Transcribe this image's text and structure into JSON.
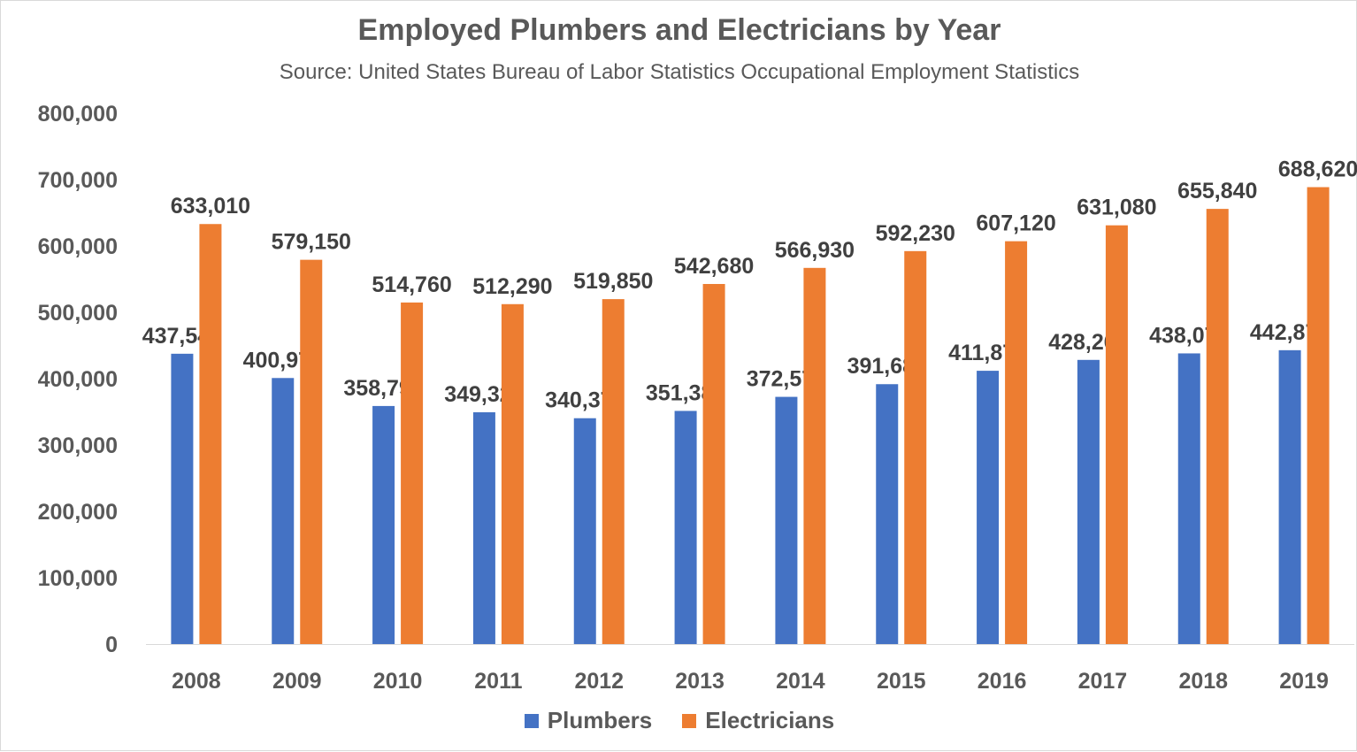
{
  "chart_data": {
    "type": "bar",
    "title": "Employed Plumbers and Electricians by Year",
    "subtitle": "Source: United States Bureau of Labor Statistics Occupational Employment Statistics",
    "xlabel": "",
    "ylabel": "",
    "ylim": [
      0,
      800000
    ],
    "yticks": [
      "0",
      "100,000",
      "200,000",
      "300,000",
      "400,000",
      "500,000",
      "600,000",
      "700,000",
      "800,000"
    ],
    "grid": false,
    "legend_position": "bottom",
    "categories": [
      "2008",
      "2009",
      "2010",
      "2011",
      "2012",
      "2013",
      "2014",
      "2015",
      "2016",
      "2017",
      "2018",
      "2019"
    ],
    "series": [
      {
        "name": "Plumbers",
        "color": "#4472C4",
        "values": [
          437540,
          400970,
          358790,
          349320,
          340370,
          351380,
          372570,
          391680,
          411870,
          428260,
          438070,
          442870
        ],
        "labels": [
          "437,540",
          "400,970",
          "358,790",
          "349,320",
          "340,370",
          "351,380",
          "372,570",
          "391,680",
          "411,870",
          "428,260",
          "438,070",
          "442,870"
        ]
      },
      {
        "name": "Electricians",
        "color": "#ED7D31",
        "values": [
          633010,
          579150,
          514760,
          512290,
          519850,
          542680,
          566930,
          592230,
          607120,
          631080,
          655840,
          688620
        ],
        "labels": [
          "633,010",
          "579,150",
          "514,760",
          "512,290",
          "519,850",
          "542,680",
          "566,930",
          "592,230",
          "607,120",
          "631,080",
          "655,840",
          "688,620"
        ]
      }
    ]
  }
}
